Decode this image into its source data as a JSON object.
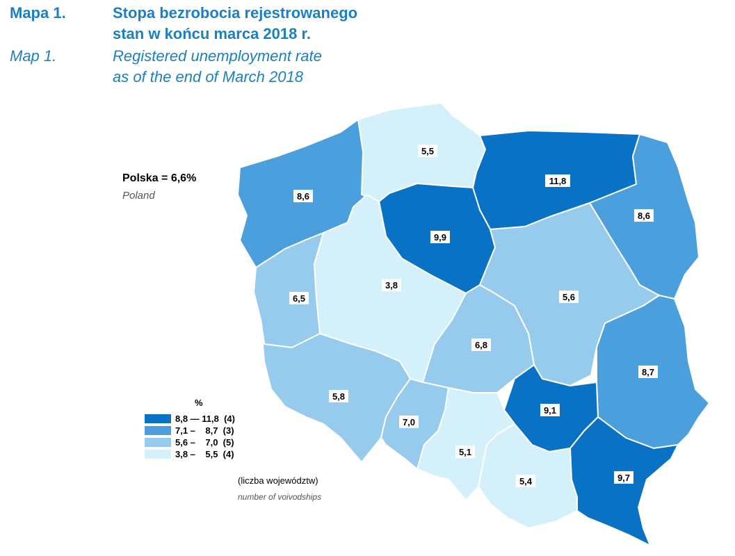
{
  "header": {
    "map_no_pl": "Mapa 1.",
    "title_pl_line1": "Stopa bezrobocia rejestrowanego",
    "title_pl_line2": "stan w końcu marca 2018 r.",
    "map_no_en": "Map 1.",
    "title_en_line1": "Registered unemployment rate",
    "title_en_line2": "as of the end of March 2018"
  },
  "national": {
    "label": "Polska = 6,6%",
    "label_en": "Poland"
  },
  "colors": {
    "class1": "#0a72c4",
    "class2": "#4b9fdc",
    "class3": "#97cbee",
    "class4": "#d4f1fb"
  },
  "regions": [
    {
      "value": "8,6",
      "class": "class2"
    },
    {
      "value": "5,5",
      "class": "class4"
    },
    {
      "value": "11,8",
      "class": "class1"
    },
    {
      "value": "8,6",
      "class": "class2"
    },
    {
      "value": "9,9",
      "class": "class1"
    },
    {
      "value": "3,8",
      "class": "class4"
    },
    {
      "value": "6,5",
      "class": "class3"
    },
    {
      "value": "5,6",
      "class": "class3"
    },
    {
      "value": "6,8",
      "class": "class3"
    },
    {
      "value": "8,7",
      "class": "class2"
    },
    {
      "value": "5,8",
      "class": "class3"
    },
    {
      "value": "9,1",
      "class": "class1"
    },
    {
      "value": "7,0",
      "class": "class3"
    },
    {
      "value": "5,1",
      "class": "class4"
    },
    {
      "value": "5,4",
      "class": "class4"
    },
    {
      "value": "9,7",
      "class": "class1"
    }
  ],
  "legend": {
    "unit": "%",
    "rows": [
      {
        "range": "8,8 — 11,8  (4)",
        "class": "class1"
      },
      {
        "range": "7,1 –    8,7  (3)",
        "class": "class2"
      },
      {
        "range": "5,6 –    7,0  (5)",
        "class": "class3"
      },
      {
        "range": "3,8 –    5,5  (4)",
        "class": "class4"
      }
    ],
    "note": "(liczba województw)",
    "note_en": "number of voivodships"
  }
}
